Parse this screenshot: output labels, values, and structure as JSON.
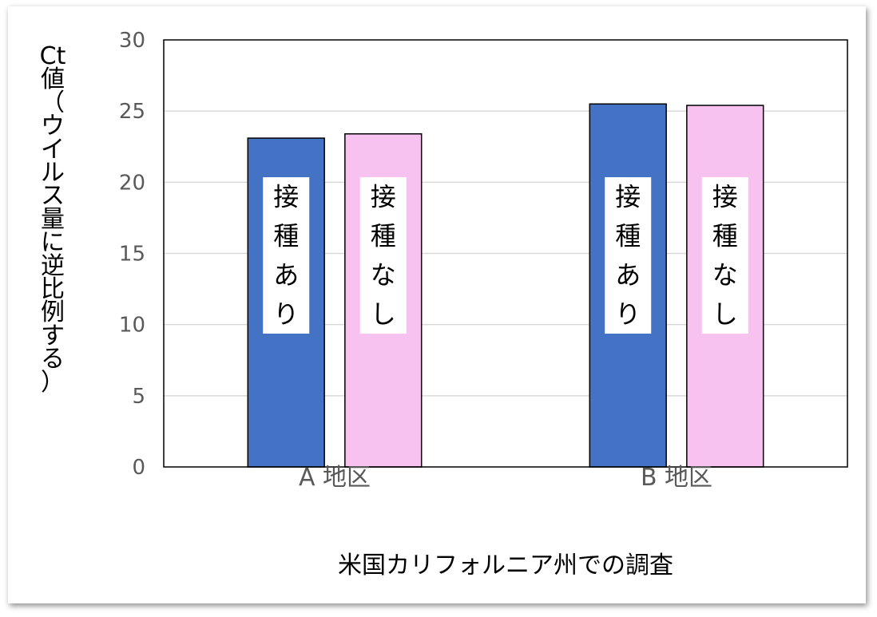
{
  "chart_data": {
    "type": "bar",
    "categories": [
      "A 地区",
      "B 地区"
    ],
    "series": [
      {
        "name": "接種あり",
        "color": "#4472c4",
        "values": [
          23.1,
          25.5
        ]
      },
      {
        "name": "接種なし",
        "color": "#f7c2ef",
        "values": [
          23.4,
          25.4
        ]
      }
    ],
    "xlabel": "米国カリフォルニア州での調査",
    "ylabel": "Ct値（ウイルス量に逆比例する）",
    "ylim": [
      0,
      30
    ],
    "yticks": [
      0,
      5,
      10,
      15,
      20,
      25,
      30
    ],
    "grid": true,
    "legend": "none"
  }
}
